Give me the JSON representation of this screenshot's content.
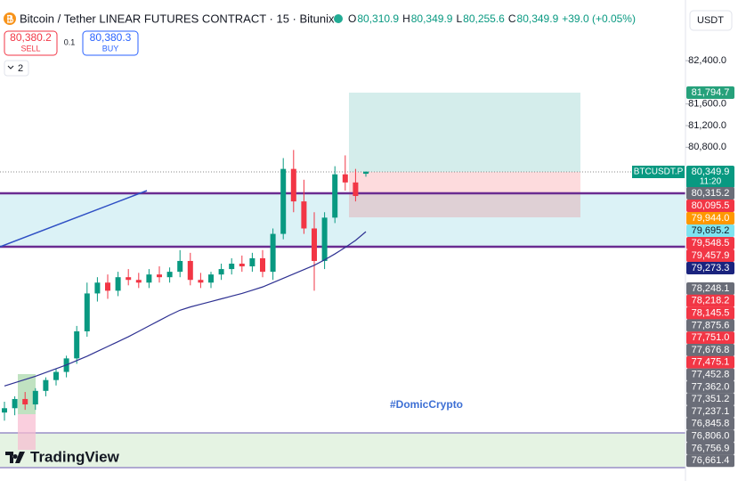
{
  "header": {
    "symbol": "Bitcoin / Tether LINEAR FUTURES CONTRACT · 15 · Bitunix",
    "ohlc": [
      {
        "label": "O",
        "value": "80,310.9"
      },
      {
        "label": "H",
        "value": "80,349.9"
      },
      {
        "label": "L",
        "value": "80,255.6"
      },
      {
        "label": "C",
        "value": "80,349.9"
      }
    ],
    "change": "+39.0 (+0.05%)",
    "currency": "USDT"
  },
  "trade": {
    "sell_price": "80,380.2",
    "sell_label": "SELL",
    "quantity": "0.1",
    "buy_price": "80,380.3",
    "buy_label": "BUY"
  },
  "indicators_count": "2",
  "watermark": "TradingView",
  "annotation": "#DomicCrypto",
  "symbol_tag": "BTCUSDT.P",
  "last_price_tag": {
    "price": "80,349.9",
    "countdown": "11:20",
    "color": "#089981"
  },
  "target_tag": {
    "text": "81,794.7",
    "color": "#26a17b"
  },
  "price_tags_upper": [
    {
      "text": "80,315.2",
      "color": "#6a6d78"
    },
    {
      "text": "80,095.5",
      "color": "#f23645"
    },
    {
      "text": "79,944.0",
      "color": "#ff9800"
    },
    {
      "text": "79,695.2",
      "color": "#7ee3f0"
    },
    {
      "text": "79,548.5",
      "color": "#f23645"
    },
    {
      "text": "79,457.9",
      "color": "#f23645"
    },
    {
      "text": "79,273.3",
      "color": "#1a237e"
    }
  ],
  "price_tags_lower": [
    {
      "text": "78,248.1",
      "color": "#6a6d78"
    },
    {
      "text": "78,218.2",
      "color": "#f23645"
    },
    {
      "text": "78,145.5",
      "color": "#f23645"
    },
    {
      "text": "77,875.6",
      "color": "#6a6d78"
    },
    {
      "text": "77,751.0",
      "color": "#f23645"
    },
    {
      "text": "77,676.8",
      "color": "#6a6d78"
    },
    {
      "text": "77,475.1",
      "color": "#f23645"
    },
    {
      "text": "77,452.8",
      "color": "#6a6d78"
    },
    {
      "text": "77,362.0",
      "color": "#6a6d78"
    },
    {
      "text": "77,351.2",
      "color": "#6a6d78"
    },
    {
      "text": "77,237.1",
      "color": "#6a6d78"
    },
    {
      "text": "76,845.8",
      "color": "#6a6d78"
    },
    {
      "text": "76,806.0",
      "color": "#6a6d78"
    },
    {
      "text": "76,756.9",
      "color": "#6a6d78"
    },
    {
      "text": "76,661.4",
      "color": "#6a6d78"
    }
  ],
  "chart_data": {
    "type": "candlestick",
    "open": [
      75900,
      75980,
      76150,
      76050,
      76300,
      76500,
      76650,
      76900,
      77400,
      78100,
      78300,
      78150,
      78400,
      78350,
      78300,
      78450,
      78400,
      78500,
      78700,
      78350,
      78300,
      78450,
      78550,
      78650,
      78600,
      78750,
      78500,
      79200,
      80400,
      79800,
      79300,
      78700,
      79500,
      80300,
      80150,
      80310.9
    ],
    "high": [
      76100,
      76200,
      76280,
      76350,
      76550,
      76700,
      76950,
      77500,
      78300,
      78400,
      78450,
      78500,
      78550,
      78480,
      78550,
      78600,
      78580,
      78900,
      78850,
      78480,
      78500,
      78650,
      78750,
      78800,
      78850,
      78900,
      79300,
      80600,
      80750,
      80200,
      79600,
      79600,
      80450,
      80650,
      80400,
      80349.9
    ],
    "low": [
      75750,
      75850,
      75950,
      75950,
      76200,
      76400,
      76550,
      76800,
      77300,
      77950,
      78000,
      78050,
      78250,
      78200,
      78200,
      78300,
      78300,
      78400,
      78250,
      78200,
      78200,
      78350,
      78450,
      78500,
      78500,
      78400,
      78350,
      79100,
      79600,
      79200,
      78150,
      78550,
      79400,
      80000,
      79800,
      80255.6
    ],
    "close": [
      75980,
      76150,
      76050,
      76300,
      76500,
      76650,
      76900,
      77400,
      78100,
      78300,
      78150,
      78400,
      78350,
      78300,
      78450,
      78400,
      78500,
      78700,
      78350,
      78300,
      78450,
      78550,
      78650,
      78600,
      78750,
      78500,
      79200,
      80400,
      79800,
      79300,
      78700,
      79500,
      80300,
      80150,
      79900,
      80349.9
    ],
    "up_color": "#089981",
    "down_color": "#f23645",
    "moving_average": {
      "color": "#2e3192",
      "values": [
        76390,
        76450,
        76510,
        76570,
        76640,
        76710,
        76780,
        76860,
        76940,
        77030,
        77120,
        77210,
        77300,
        77400,
        77500,
        77600,
        77700,
        77790,
        77850,
        77900,
        77950,
        78000,
        78050,
        78100,
        78160,
        78220,
        78300,
        78380,
        78460,
        78540,
        78620,
        78720,
        78830,
        78950,
        79080,
        79240
      ]
    },
    "ylim": [
      74800,
      83520
    ],
    "yticks": [
      {
        "value": 82400,
        "label": "82,400.0"
      },
      {
        "value": 81600,
        "label": "81,600.0"
      },
      {
        "value": 81200,
        "label": "81,200.0"
      },
      {
        "value": 80800,
        "label": "80,800.0"
      }
    ],
    "grid": false
  }
}
